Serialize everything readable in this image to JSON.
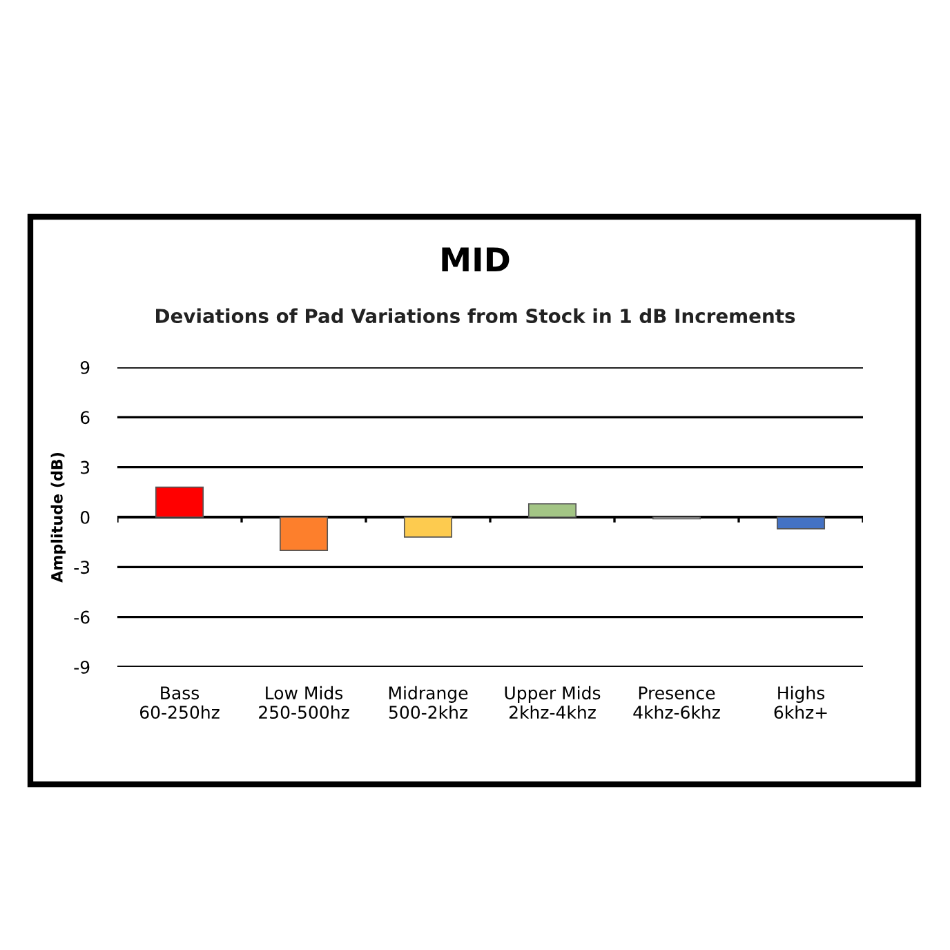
{
  "chart_data": {
    "type": "bar",
    "title": "MID",
    "subtitle": "Deviations of Pad Variations from Stock in 1 dB Increments",
    "ylabel": "Amplitude (dB)",
    "categories": [
      "Bass\n60-250hz",
      "Low Mids\n250-500hz",
      "Midrange\n500-2khz",
      "Upper Mids\n2khz-4khz",
      "Presence\n4khz-6khz",
      "Highs\n6khz+"
    ],
    "values": [
      1.8,
      -2.0,
      -1.2,
      0.8,
      -0.1,
      -0.7
    ],
    "colors": [
      "#ff0000",
      "#fd7f2c",
      "#fdcb4f",
      "#a3c585",
      "#eeeeee",
      "#4472c4"
    ],
    "ylim": [
      -9,
      9
    ],
    "yticks": [
      -9,
      -6,
      -3,
      0,
      3,
      6,
      9
    ],
    "grid": "y"
  }
}
